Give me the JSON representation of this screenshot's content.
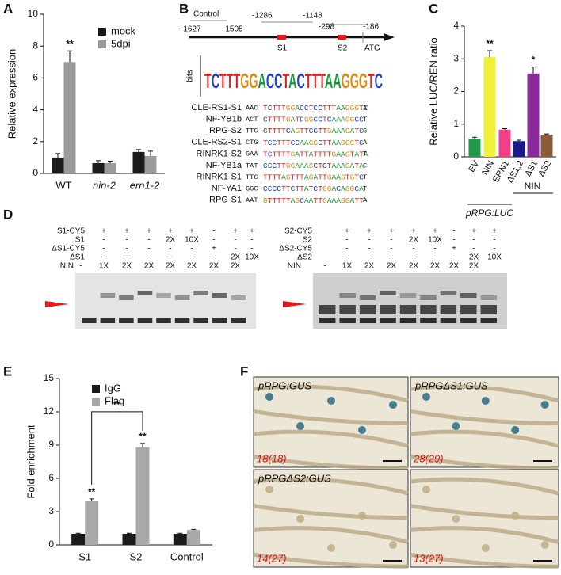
{
  "panel_labels": [
    "A",
    "B",
    "C",
    "D",
    "E",
    "F"
  ],
  "chart_data": [
    {
      "type": "bar",
      "y_label": "Relative expression",
      "categories": [
        "WT",
        "nin-2",
        "ern1-2"
      ],
      "series": [
        {
          "name": "mock",
          "color": "#1a1a1a",
          "values": [
            1.0,
            0.65,
            1.35
          ],
          "errors": [
            0.25,
            0.15,
            0.15
          ]
        },
        {
          "name": "5dpi",
          "color": "#9a9a9a",
          "values": [
            7.0,
            0.65,
            1.1
          ],
          "errors": [
            0.7,
            0.12,
            0.3
          ]
        }
      ],
      "ylim": [
        0,
        10
      ],
      "yticks": [
        0,
        2,
        4,
        6,
        8,
        10
      ],
      "annotations": [
        "**"
      ]
    },
    {
      "type": "bar",
      "y_label": "Relative LUC/REN ratio",
      "categories": [
        "EV",
        "NIN",
        "ERN1",
        "ΔS1,2",
        "ΔS1",
        "ΔS2"
      ],
      "colors": [
        "#1f9a4a",
        "#eef03a",
        "#f0408a",
        "#1a1a8c",
        "#8a2a9a",
        "#8a5a3a"
      ],
      "values": [
        0.55,
        3.05,
        0.83,
        0.48,
        2.55,
        0.68
      ],
      "errors": [
        0.05,
        0.2,
        0.03,
        0.03,
        0.2,
        0.02
      ],
      "ylim": [
        0,
        4
      ],
      "yticks": [
        0,
        1,
        2,
        3,
        4
      ],
      "annotations": [
        "**",
        "*"
      ],
      "group_labels": [
        "pRPG:LUC",
        "NIN"
      ]
    },
    {
      "type": "bar",
      "y_label": "Fold enrichment",
      "categories": [
        "S1",
        "S2",
        "Control"
      ],
      "series": [
        {
          "name": "IgG",
          "color": "#1a1a1a",
          "values": [
            1.0,
            1.0,
            1.0
          ],
          "errors": [
            0.05,
            0.05,
            0.05
          ]
        },
        {
          "name": "Flag",
          "color": "#a8a8a8",
          "values": [
            4.0,
            8.8,
            1.35
          ],
          "errors": [
            0.15,
            0.35,
            0.05
          ]
        }
      ],
      "ylim": [
        0,
        15
      ],
      "yticks": [
        0,
        3,
        6,
        9,
        12,
        15
      ],
      "annotations": [
        "**",
        "**",
        "**"
      ]
    }
  ],
  "promoter": {
    "control": "Control",
    "positions": [
      "-1627",
      "-1505",
      "-1286",
      "-1148",
      "-298",
      "-186"
    ],
    "sites": [
      "S1",
      "S2"
    ],
    "start": "ATG",
    "logo_axis": "bits",
    "logo": "TCTTTGGACCTACTTTAAGGGTC"
  },
  "alignment": [
    {
      "name": "CLE-RS1-S1",
      "left": "AAC",
      "core": "TCTTTGGACCTCCTTTAAGGGTC",
      "right": "A"
    },
    {
      "name": "NF-YB1b",
      "left": "ACT",
      "core": "CTTTTGATCGGCCTCAAAGGCC",
      "right": "T"
    },
    {
      "name": "RPG-S2",
      "left": "TTC",
      "core": "CTTTTCAGTTCCTTGAAAGATC",
      "right": "G"
    },
    {
      "name": "CLE-RS2-S1",
      "left": "CTG",
      "core": "TCCTTTCCAAGGCTTAAGGGTC",
      "right": "A"
    },
    {
      "name": "RINRK1-S2",
      "left": "GAA",
      "core": "TCTTTTGATTATTTTGAAGTATA",
      "right": "T"
    },
    {
      "name": "NF-YB1a",
      "left": "TAT",
      "core": "CCCTTGGAAAGCTCTAAAGATA",
      "right": "C"
    },
    {
      "name": "RINRK1-S1",
      "left": "TTC",
      "core": "TTTTAGTTTAGATTGAAGTGTC",
      "right": "T"
    },
    {
      "name": "NF-YA1",
      "left": "GGC",
      "core": "CCCCTTCTTATCTGGACAGGCA",
      "right": "T"
    },
    {
      "name": "RPG-S1",
      "left": "AAT",
      "core": "GTTTTTAGCAATTGAAAGGATT",
      "right": "A"
    }
  ],
  "emsa": [
    {
      "rows": [
        {
          "label": "S1-CY5",
          "cells": [
            "+",
            "+",
            "+",
            "+",
            "+",
            "-",
            "+",
            "+"
          ]
        },
        {
          "label": "S1",
          "cells": [
            "-",
            "-",
            "-",
            "2X",
            "10X",
            "-",
            "-",
            "-"
          ]
        },
        {
          "label": "ΔS1-CY5",
          "cells": [
            "-",
            "-",
            "-",
            "-",
            "-",
            "+",
            "-",
            "-"
          ]
        },
        {
          "label": "ΔS1",
          "cells": [
            "-",
            "-",
            "-",
            "-",
            "-",
            "-",
            "2X",
            "10X"
          ]
        },
        {
          "label": "NIN",
          "cells": [
            "-",
            "1X",
            "2X",
            "2X",
            "2X",
            "2X",
            "2X",
            "2X"
          ]
        }
      ]
    },
    {
      "rows": [
        {
          "label": "S2-CY5",
          "cells": [
            "+",
            "+",
            "+",
            "+",
            "+",
            "-",
            "+",
            "+"
          ]
        },
        {
          "label": "S2",
          "cells": [
            "-",
            "-",
            "-",
            "2X",
            "10X",
            "-",
            "-",
            "-"
          ]
        },
        {
          "label": "ΔS2-CY5",
          "cells": [
            "-",
            "-",
            "-",
            "-",
            "-",
            "+",
            "-",
            "-"
          ]
        },
        {
          "label": "ΔS2",
          "cells": [
            "-",
            "-",
            "-",
            "-",
            "-",
            "-",
            "2X",
            "10X"
          ]
        },
        {
          "label": "NIN",
          "cells": [
            "-",
            "1X",
            "2X",
            "2X",
            "2X",
            "2X",
            "2X",
            "2X"
          ]
        }
      ]
    }
  ],
  "gus": [
    {
      "label": "pRPG:GUS",
      "count": "18(18)"
    },
    {
      "label": "pRPGΔS1:GUS",
      "count": "28(29)"
    },
    {
      "label": "pRPGΔS2:GUS",
      "count": "14(27)"
    },
    {
      "label": null,
      "count": "13(27)"
    }
  ]
}
